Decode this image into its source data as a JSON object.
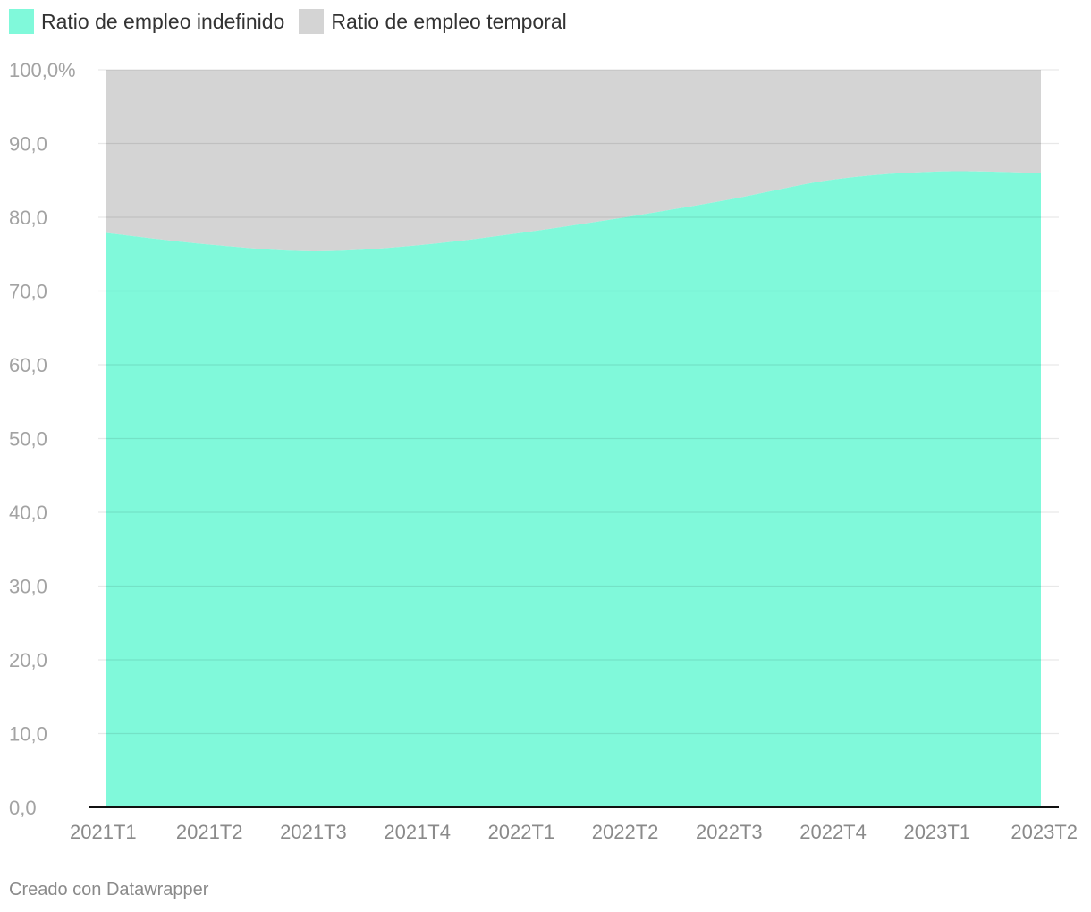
{
  "legend": [
    {
      "label": "Ratio de empleo indefinido",
      "color": "#80f9da"
    },
    {
      "label": "Ratio de empleo temporal",
      "color": "#d4d4d4"
    }
  ],
  "footer": "Creado con Datawrapper",
  "chart_data": {
    "type": "area",
    "stacked": true,
    "categories": [
      "2021T1",
      "2021T2",
      "2021T3",
      "2021T4",
      "2022T1",
      "2022T2",
      "2022T3",
      "2022T4",
      "2023T1",
      "2023T2"
    ],
    "series": [
      {
        "name": "Ratio de empleo indefinido",
        "color": "#80f9da",
        "values": [
          77.9,
          76.3,
          75.4,
          76.2,
          77.9,
          80.0,
          82.4,
          85.1,
          86.2,
          86.0
        ]
      },
      {
        "name": "Ratio de empleo temporal",
        "color": "#d4d4d4",
        "values": [
          22.1,
          23.7,
          24.6,
          23.8,
          22.1,
          20.0,
          17.6,
          14.9,
          13.8,
          14.0
        ]
      }
    ],
    "ylim": [
      0,
      100
    ],
    "yticks": [
      {
        "value": 0,
        "label": "0,0"
      },
      {
        "value": 10,
        "label": "10,0"
      },
      {
        "value": 20,
        "label": "20,0"
      },
      {
        "value": 30,
        "label": "30,0"
      },
      {
        "value": 40,
        "label": "40,0"
      },
      {
        "value": 50,
        "label": "50,0"
      },
      {
        "value": 60,
        "label": "60,0"
      },
      {
        "value": 70,
        "label": "70,0"
      },
      {
        "value": 80,
        "label": "80,0"
      },
      {
        "value": 90,
        "label": "90,0"
      },
      {
        "value": 100,
        "label": "100,0%"
      }
    ],
    "grid": true,
    "legend_position": "top-left"
  }
}
